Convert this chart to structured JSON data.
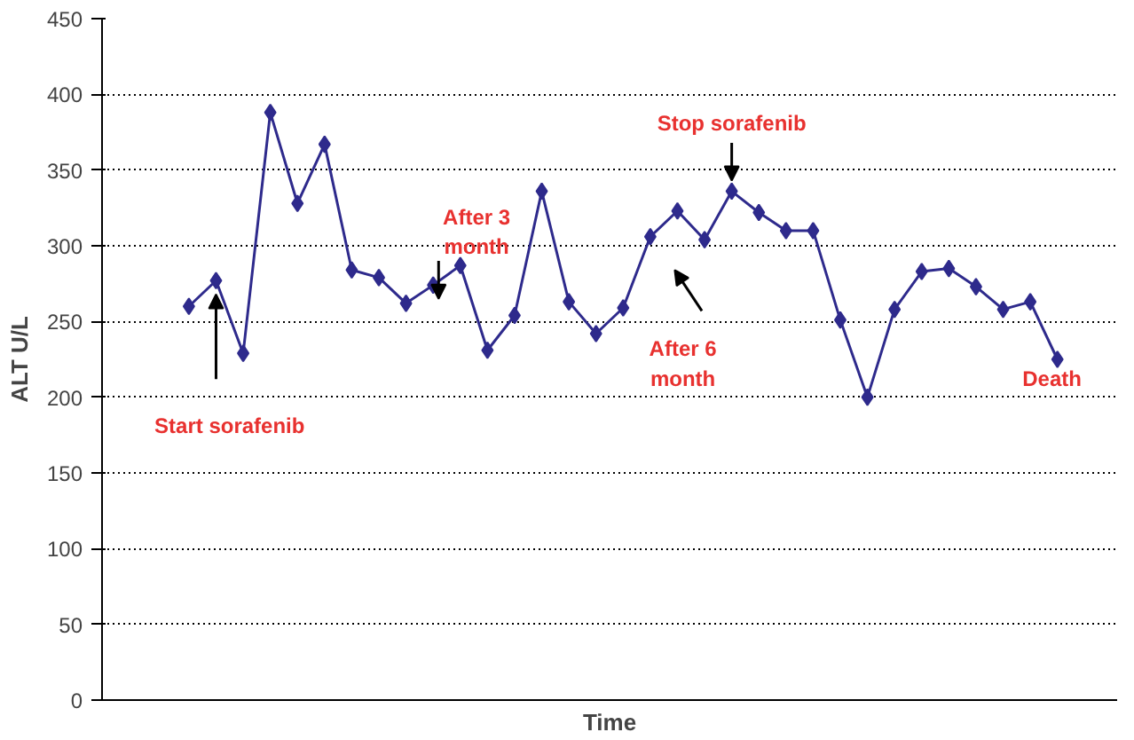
{
  "chart_data": {
    "type": "line",
    "xlabel": "Time",
    "ylabel": "ALT U/L",
    "categories": [
      null,
      null,
      null,
      null,
      null,
      null,
      null,
      null,
      null,
      null,
      null,
      null,
      null,
      null,
      null,
      null,
      null,
      null,
      null,
      null,
      null,
      null,
      null,
      null,
      null,
      null,
      null,
      null,
      null,
      null,
      null,
      null,
      null
    ],
    "series": [
      {
        "color": "#2e2a8c",
        "values": [
          260,
          277,
          229,
          388,
          328,
          367,
          284,
          279,
          262,
          274,
          287,
          231,
          254,
          336,
          263,
          242,
          259,
          306,
          323,
          304,
          336,
          322,
          310,
          310,
          251,
          200,
          258,
          283,
          285,
          273,
          258,
          263,
          225
        ]
      }
    ],
    "ylim": [
      0,
      450
    ],
    "yticks": [
      0,
      50,
      100,
      150,
      200,
      250,
      300,
      350,
      400,
      450
    ],
    "grid": "y",
    "marker": "diamond",
    "line_style": "solid",
    "annotations": [
      "Start sorafenib",
      "After 3\nmonth",
      "After 6\nmonth",
      "Stop sorafenib",
      "Death"
    ]
  }
}
